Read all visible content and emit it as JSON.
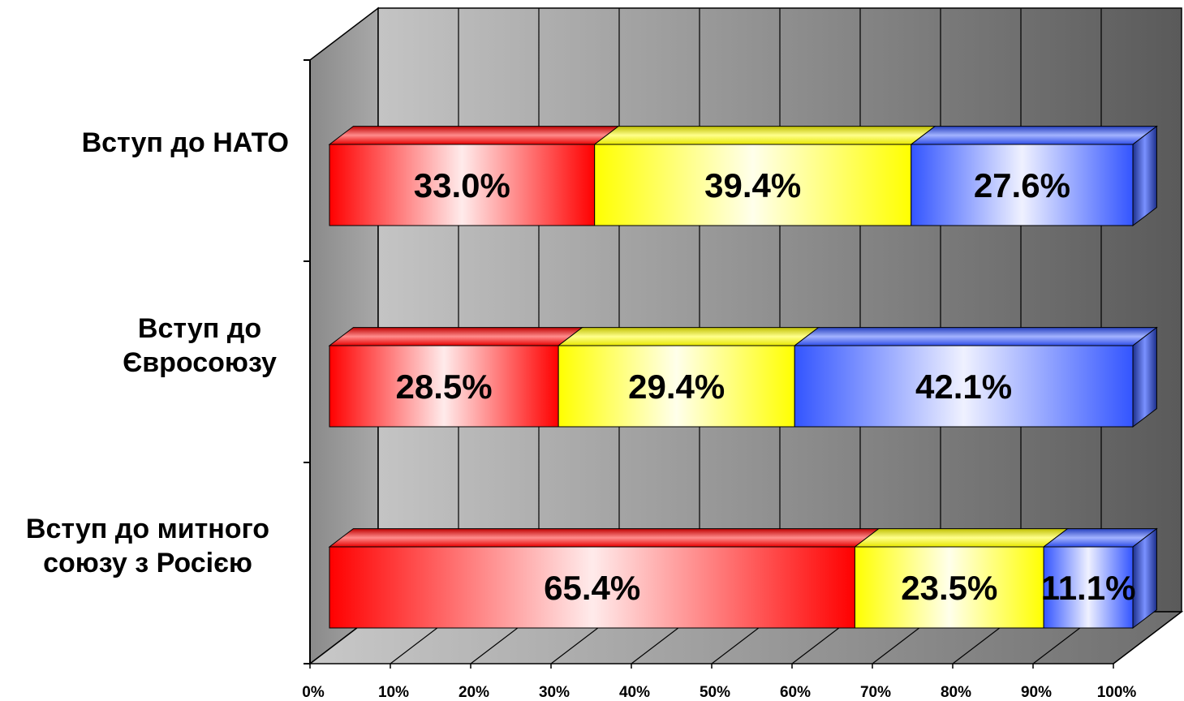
{
  "chart_data": {
    "type": "bar",
    "orientation": "horizontal",
    "stacked": true,
    "percent_stacked": true,
    "style": "3d",
    "title": "",
    "xlabel": "",
    "ylabel": "",
    "xlim": [
      0,
      100
    ],
    "grid": true,
    "legend": "none",
    "categories": [
      [
        "Вступ до НАТО"
      ],
      [
        "Вступ до",
        "Євросоюзу"
      ],
      [
        "Вступ до митного",
        "союзу з Росією"
      ]
    ],
    "x_ticks": [
      "0%",
      "10%",
      "20%",
      "30%",
      "40%",
      "50%",
      "60%",
      "70%",
      "80%",
      "90%",
      "100%"
    ],
    "series": [
      {
        "color": "#ff0000",
        "values": [
          33.0,
          28.5,
          65.4
        ],
        "labels": [
          "33.0%",
          "28.5%",
          "65.4%"
        ]
      },
      {
        "color": "#ffff00",
        "values": [
          39.4,
          29.4,
          23.5
        ],
        "labels": [
          "39.4%",
          "29.4%",
          "23.5%"
        ]
      },
      {
        "color": "#3355ff",
        "values": [
          27.6,
          42.1,
          11.1
        ],
        "labels": [
          "27.6%",
          "42.1%",
          "11.1%"
        ]
      }
    ]
  }
}
